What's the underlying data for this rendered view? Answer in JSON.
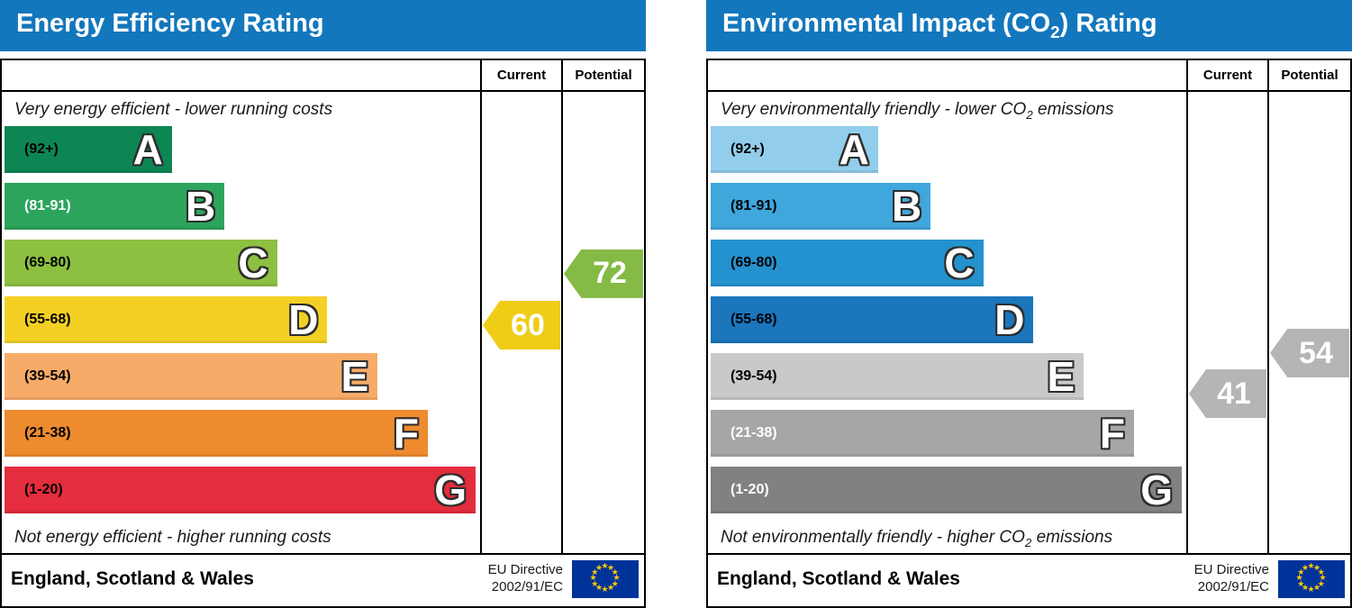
{
  "panels": [
    {
      "title": {
        "pre": "Energy Efficiency Rating",
        "sub": "",
        "post": ""
      },
      "columns": {
        "current": "Current",
        "potential": "Potential"
      },
      "top_note": {
        "pre": "Very energy efficient - lower running costs",
        "sub": "",
        "post": ""
      },
      "bottom_note": {
        "pre": "Not energy efficient - higher running costs",
        "sub": "",
        "post": ""
      },
      "bands": [
        {
          "letter": "A",
          "range": "(92+)",
          "min": 92,
          "max": 100,
          "width_pct": 35,
          "color": "#0d8653",
          "label_color": "#000000"
        },
        {
          "letter": "B",
          "range": "(81-91)",
          "min": 81,
          "max": 91,
          "width_pct": 46,
          "color": "#2da45c",
          "label_color": "#ffffff"
        },
        {
          "letter": "C",
          "range": "(69-80)",
          "min": 69,
          "max": 80,
          "width_pct": 57,
          "color": "#8dc041",
          "label_color": "#000000"
        },
        {
          "letter": "D",
          "range": "(55-68)",
          "min": 55,
          "max": 68,
          "width_pct": 67.5,
          "color": "#f4d024",
          "label_color": "#000000"
        },
        {
          "letter": "E",
          "range": "(39-54)",
          "min": 39,
          "max": 54,
          "width_pct": 78,
          "color": "#f7ab68",
          "label_color": "#000000"
        },
        {
          "letter": "F",
          "range": "(21-38)",
          "min": 21,
          "max": 38,
          "width_pct": 88.5,
          "color": "#ee8b2f",
          "label_color": "#000000"
        },
        {
          "letter": "G",
          "range": "(1-20)",
          "min": 1,
          "max": 20,
          "width_pct": 98.5,
          "color": "#e42d3d",
          "label_color": "#000000"
        }
      ],
      "current": {
        "value": 60,
        "color": "#efcc16"
      },
      "potential": {
        "value": 72,
        "color": "#84ba45"
      },
      "footer": {
        "region": "England, Scotland & Wales",
        "directive_line1": "EU Directive",
        "directive_line2": "2002/91/EC"
      }
    },
    {
      "title": {
        "pre": "Environmental Impact (CO",
        "sub": "2",
        "post": ") Rating"
      },
      "columns": {
        "current": "Current",
        "potential": "Potential"
      },
      "top_note": {
        "pre": "Very environmentally friendly - lower CO",
        "sub": "2",
        "post": " emissions"
      },
      "bottom_note": {
        "pre": "Not environmentally friendly - higher CO",
        "sub": "2",
        "post": " emissions"
      },
      "bands": [
        {
          "letter": "A",
          "range": "(92+)",
          "min": 92,
          "max": 100,
          "width_pct": 35,
          "color": "#92cdec",
          "label_color": "#000000"
        },
        {
          "letter": "B",
          "range": "(81-91)",
          "min": 81,
          "max": 91,
          "width_pct": 46,
          "color": "#3fa7dc",
          "label_color": "#000000"
        },
        {
          "letter": "C",
          "range": "(69-80)",
          "min": 69,
          "max": 80,
          "width_pct": 57,
          "color": "#2492cf",
          "label_color": "#000000"
        },
        {
          "letter": "D",
          "range": "(55-68)",
          "min": 55,
          "max": 68,
          "width_pct": 67.5,
          "color": "#1b76bc",
          "label_color": "#000000"
        },
        {
          "letter": "E",
          "range": "(39-54)",
          "min": 39,
          "max": 54,
          "width_pct": 78,
          "color": "#c9c9c9",
          "label_color": "#000000"
        },
        {
          "letter": "F",
          "range": "(21-38)",
          "min": 21,
          "max": 38,
          "width_pct": 88.5,
          "color": "#a6a6a6",
          "label_color": "#ffffff"
        },
        {
          "letter": "G",
          "range": "(1-20)",
          "min": 1,
          "max": 20,
          "width_pct": 98.5,
          "color": "#818181",
          "label_color": "#ffffff"
        }
      ],
      "current": {
        "value": 41,
        "color": "#b5b5b5"
      },
      "potential": {
        "value": 54,
        "color": "#b5b5b5"
      },
      "footer": {
        "region": "England, Scotland & Wales",
        "directive_line1": "EU Directive",
        "directive_line2": "2002/91/EC"
      }
    }
  ],
  "chart_data": [
    {
      "type": "bar",
      "title": "Energy Efficiency Rating",
      "categories": [
        "A (92+)",
        "B (81-91)",
        "C (69-80)",
        "D (55-68)",
        "E (39-54)",
        "F (21-38)",
        "G (1-20)"
      ],
      "values": [
        35,
        46,
        57,
        67.5,
        78,
        88.5,
        98.5
      ],
      "xlabel": "",
      "ylabel": "",
      "annotations": {
        "current_rating": 60,
        "current_band": "D",
        "potential_rating": 72,
        "potential_band": "C",
        "top_label": "Very energy efficient - lower running costs",
        "bottom_label": "Not energy efficient - higher running costs",
        "region": "England, Scotland & Wales",
        "directive": "EU Directive 2002/91/EC"
      }
    },
    {
      "type": "bar",
      "title": "Environmental Impact (CO2) Rating",
      "categories": [
        "A (92+)",
        "B (81-91)",
        "C (69-80)",
        "D (55-68)",
        "E (39-54)",
        "F (21-38)",
        "G (1-20)"
      ],
      "values": [
        35,
        46,
        57,
        67.5,
        78,
        88.5,
        98.5
      ],
      "xlabel": "",
      "ylabel": "",
      "annotations": {
        "current_rating": 41,
        "current_band": "E",
        "potential_rating": 54,
        "potential_band": "E",
        "top_label": "Very environmentally friendly - lower CO2 emissions",
        "bottom_label": "Not environmentally friendly - higher CO2 emissions",
        "region": "England, Scotland & Wales",
        "directive": "EU Directive 2002/91/EC"
      }
    }
  ]
}
